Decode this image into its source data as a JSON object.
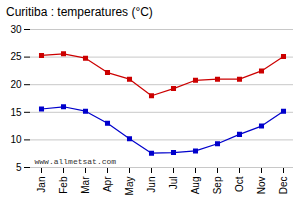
{
  "chart_data": {
    "type": "line",
    "title": "Curitiba : temperatures (°C)",
    "categories": [
      "Jan",
      "Feb",
      "Mar",
      "Apr",
      "May",
      "Jun",
      "Jul",
      "Aug",
      "Sep",
      "Oct",
      "Nov",
      "Dec"
    ],
    "series": [
      {
        "color": "#cc0000",
        "values": [
          25.3,
          25.6,
          24.8,
          22.2,
          21.0,
          18.0,
          19.3,
          20.8,
          21.0,
          21.0,
          22.5,
          25.1
        ]
      },
      {
        "color": "#0000cc",
        "values": [
          15.6,
          16.0,
          15.2,
          13.0,
          10.2,
          7.6,
          7.7,
          8.0,
          9.3,
          11.0,
          12.5,
          15.2
        ]
      }
    ],
    "ylim": [
      5,
      30
    ],
    "yticks": [
      5,
      10,
      15,
      20,
      25,
      30
    ],
    "grid": true,
    "marker": "square",
    "annotations": [
      "www.allmetsat.com"
    ]
  }
}
